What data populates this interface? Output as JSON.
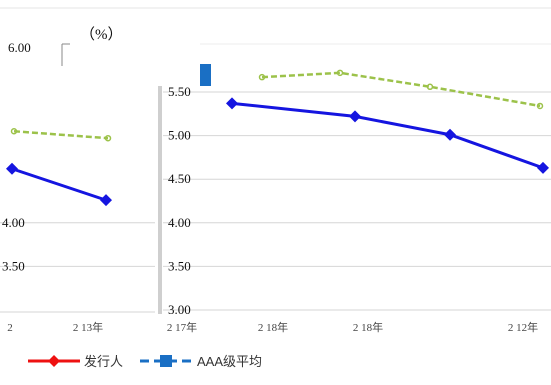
{
  "chart_data": {
    "type": "line",
    "unit_label": "（%）",
    "title": "",
    "xlabel": "",
    "ylabel": "",
    "outer_axis": {
      "top_tick": "6.00"
    },
    "left_panel": {
      "y_tick_labels": [
        "4.00",
        "3.50"
      ],
      "x_tick_labels": [
        "2",
        "2 13年"
      ],
      "series": [
        {
          "key": "issuer",
          "values": [
            4.62,
            4.26
          ]
        },
        {
          "key": "aaa",
          "values": [
            5.05,
            4.97
          ]
        }
      ]
    },
    "main_panel": {
      "ylim": [
        3.0,
        5.5
      ],
      "y_ticks": [
        "3.00",
        "3.50",
        "4.00",
        "4.50",
        "5.00",
        "5.50"
      ],
      "x_tick_labels": [
        "2 17年",
        "2 18年",
        "2 18年",
        "2 12年"
      ],
      "series": [
        {
          "key": "issuer",
          "values": [
            5.37,
            5.22,
            5.01,
            4.63
          ]
        },
        {
          "key": "aaa",
          "values": [
            5.67,
            5.72,
            5.56,
            5.34
          ]
        }
      ]
    },
    "legend": [
      {
        "key": "issuer",
        "label": "发行人",
        "color": "#ee1111"
      },
      {
        "key": "aaa",
        "label": "AAA级平均",
        "color": "#1a6fc4"
      }
    ],
    "colors": {
      "issuer_line": "#1515e0",
      "aaa_line": "#9cc24a",
      "legend_red": "#ee1111",
      "legend_blue": "#1a6fc4",
      "accent_block": "#1a6fc4",
      "grid": "#d6d6d6"
    }
  }
}
